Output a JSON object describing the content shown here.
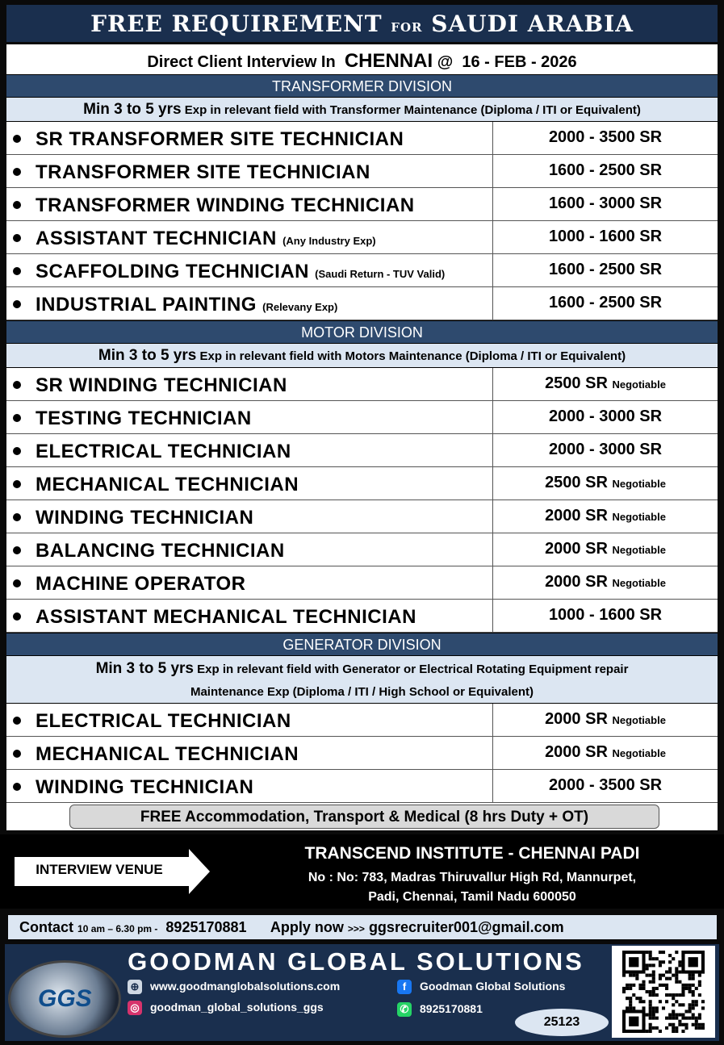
{
  "header": {
    "title_a": "FREE REQUIREMENT",
    "title_for": "FOR",
    "title_b": "SAUDI ARABIA"
  },
  "interview": {
    "prefix": "Direct Client Interview In",
    "city": "CHENNAI",
    "at": "@",
    "date": "16 - FEB - 2026"
  },
  "divisions": [
    {
      "name": "TRANSFORMER DIVISION",
      "req_bold": "Min 3 to 5 yrs",
      "req_rest": "Exp in relevant field with Transformer Maintenance",
      "req_small": "(Diploma / ITI or Equivalent)",
      "jobs": [
        {
          "title": "SR TRANSFORMER SITE TECHNICIAN",
          "note": "",
          "salary": "2000 - 3500 SR",
          "salary_note": ""
        },
        {
          "title": "TRANSFORMER SITE TECHNICIAN",
          "note": "",
          "salary": "1600 - 2500 SR",
          "salary_note": ""
        },
        {
          "title": "TRANSFORMER WINDING TECHNICIAN",
          "note": "",
          "salary": "1600 - 3000 SR",
          "salary_note": ""
        },
        {
          "title": "ASSISTANT TECHNICIAN",
          "note": "(Any Industry Exp)",
          "salary": "1000 - 1600 SR",
          "salary_note": ""
        },
        {
          "title": "SCAFFOLDING TECHNICIAN",
          "note": "(Saudi Return - TUV Valid)",
          "salary": "1600 - 2500 SR",
          "salary_note": ""
        },
        {
          "title": "INDUSTRIAL PAINTING",
          "note": "(Relevany Exp)",
          "salary": "1600 - 2500 SR",
          "salary_note": ""
        }
      ]
    },
    {
      "name": "MOTOR  DIVISION",
      "req_bold": "Min 3 to 5 yrs",
      "req_rest": "Exp in relevant field with Motors Maintenance (Diploma / ITI or Equivalent)",
      "req_small": "",
      "jobs": [
        {
          "title": "SR WINDING TECHNICIAN",
          "note": "",
          "salary": "2500 SR",
          "salary_note": "Negotiable"
        },
        {
          "title": "TESTING TECHNICIAN",
          "note": "",
          "salary": "2000 - 3000 SR",
          "salary_note": ""
        },
        {
          "title": "ELECTRICAL TECHNICIAN",
          "note": "",
          "salary": "2000 - 3000 SR",
          "salary_note": ""
        },
        {
          "title": "MECHANICAL TECHNICIAN",
          "note": "",
          "salary": "2500 SR",
          "salary_note": "Negotiable"
        },
        {
          "title": "WINDING TECHNICIAN",
          "note": "",
          "salary": "2000 SR",
          "salary_note": "Negotiable"
        },
        {
          "title": "BALANCING TECHNICIAN",
          "note": "",
          "salary": "2000 SR",
          "salary_note": "Negotiable"
        },
        {
          "title": "MACHINE OPERATOR",
          "note": "",
          "salary": "2000 SR",
          "salary_note": "Negotiable"
        },
        {
          "title": "ASSISTANT MECHANICAL TECHNICIAN",
          "note": "",
          "salary": "1000 - 1600 SR",
          "salary_note": ""
        }
      ]
    },
    {
      "name": "GENERATOR   DIVISION",
      "req_bold": "Min 3 to 5 yrs",
      "req_rest": "Exp in relevant field with Generator or Electrical Rotating Equipment repair",
      "req_small": "Maintenance Exp  (Diploma / ITI / High School or Equivalent)",
      "jobs": [
        {
          "title": "ELECTRICAL TECHNICIAN",
          "note": "",
          "salary": "2000 SR",
          "salary_note": "Negotiable"
        },
        {
          "title": "MECHANICAL TECHNICIAN",
          "note": "",
          "salary": "2000 SR",
          "salary_note": "Negotiable"
        },
        {
          "title": "WINDING TECHNICIAN",
          "note": "",
          "salary": "2000 - 3500 SR",
          "salary_note": ""
        }
      ]
    }
  ],
  "benefits": "FREE Accommodation, Transport & Medical (8 hrs Duty + OT)",
  "venue": {
    "label": "INTERVIEW VENUE",
    "name": "TRANSCEND INSTITUTE - CHENNAI PADI",
    "address_1": "No : No: 783, Madras Thiruvallur High Rd, Mannurpet,",
    "address_2": "Padi, Chennai, Tamil Nadu 600050"
  },
  "contact": {
    "label": "Contact",
    "hours": "10 am – 6.30 pm -",
    "phone": "8925170881",
    "apply": "Apply now",
    "arrows": ">>>",
    "email": "ggsrecruiter001@gmail.com"
  },
  "footer": {
    "company": "GOODMAN GLOBAL SOLUTIONS",
    "logo": "GGS",
    "website": "www.goodmanglobalsolutions.com",
    "facebook": "Goodman Global Solutions",
    "instagram": "goodman_global_solutions_ggs",
    "whatsapp": "8925170881",
    "code": "25123"
  },
  "colors": {
    "navy": "#1a2f4e",
    "division": "#2e4a6e",
    "light": "#dce6f2"
  }
}
